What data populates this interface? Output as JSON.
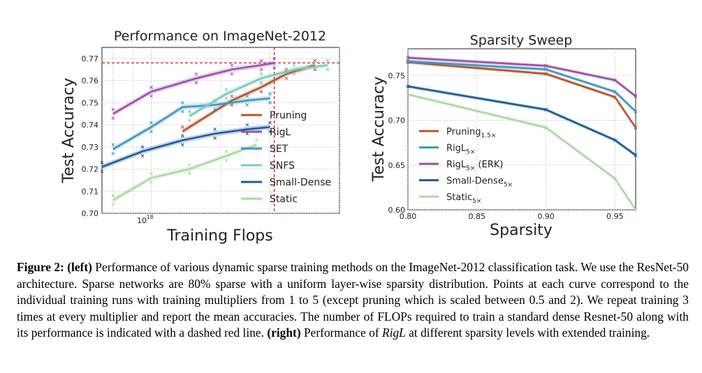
{
  "colors": {
    "pruning": "#b5542a",
    "rigl": "#9b4fae",
    "set": "#3f97c4",
    "snfs": "#79cbbf",
    "small_dense": "#1b5d9a",
    "static": "#a9dba0",
    "dense_line": "#d62728"
  },
  "chart_data": [
    {
      "type": "line",
      "title": "Performance on ImageNet-2012",
      "xlabel": "Training Flops",
      "ylabel": "Test Accuracy",
      "x_scale": "log",
      "xlim": [
        0.75,
        3.0
      ],
      "ylim": [
        0.7,
        0.775
      ],
      "x_tick_label": "10",
      "x_tick_exponent": "18",
      "y_ticks": [
        "0.70",
        "0.71",
        "0.72",
        "0.73",
        "0.74",
        "0.75",
        "0.76",
        "0.77"
      ],
      "dense_reference": {
        "accuracy": 0.768,
        "flops": 2.05
      },
      "legend_position": "center-right",
      "grid": true,
      "series": [
        {
          "key": "pruning",
          "name": "Pruning",
          "x": [
            1.2,
            1.6,
            1.9,
            2.2,
            2.6
          ],
          "y": [
            0.737,
            0.751,
            0.757,
            0.763,
            0.767
          ]
        },
        {
          "key": "rigl",
          "name": "RigL",
          "x": [
            0.8,
            1.0,
            1.3,
            1.6,
            1.9,
            2.05
          ],
          "y": [
            0.745,
            0.755,
            0.761,
            0.765,
            0.767,
            0.768
          ]
        },
        {
          "key": "set",
          "name": "SET",
          "x": [
            0.8,
            1.0,
            1.2,
            1.45,
            1.75,
            2.0
          ],
          "y": [
            0.729,
            0.739,
            0.748,
            0.749,
            0.751,
            0.752
          ]
        },
        {
          "key": "snfs",
          "name": "SNFS",
          "x": [
            1.25,
            1.55,
            1.9,
            2.3,
            2.8
          ],
          "y": [
            0.744,
            0.754,
            0.761,
            0.765,
            0.767
          ]
        },
        {
          "key": "small_dense",
          "name": "Small-Dense",
          "x": [
            0.75,
            0.95,
            1.2,
            1.45,
            1.75,
            2.0
          ],
          "y": [
            0.721,
            0.728,
            0.733,
            0.736,
            0.738,
            0.739
          ]
        },
        {
          "key": "static",
          "name": "Static",
          "x": [
            0.8,
            1.0,
            1.25,
            1.55,
            1.85
          ],
          "y": [
            0.706,
            0.716,
            0.72,
            0.726,
            0.731
          ]
        }
      ]
    },
    {
      "type": "line",
      "title": "Sparsity Sweep",
      "xlabel": "Sparsity",
      "ylabel": "Test Accuracy",
      "xlim": [
        0.8,
        0.965
      ],
      "ylim": [
        0.6,
        0.78
      ],
      "x_ticks": [
        "0.80",
        "0.85",
        "0.90",
        "0.95"
      ],
      "y_ticks": [
        "0.60",
        "0.65",
        "0.70",
        "0.75"
      ],
      "legend_position": "center",
      "grid": true,
      "series": [
        {
          "key": "pruning",
          "name": "Pruning",
          "sub": "1.5×",
          "x": [
            0.8,
            0.9,
            0.95,
            0.965
          ],
          "y": [
            0.765,
            0.752,
            0.726,
            0.692
          ]
        },
        {
          "key": "set",
          "name": "RigL",
          "sub": "5×",
          "x": [
            0.8,
            0.9,
            0.95,
            0.965
          ],
          "y": [
            0.766,
            0.757,
            0.732,
            0.71
          ]
        },
        {
          "key": "rigl",
          "name": "RigL",
          "sub": "5×",
          "suffix": " (ERK)",
          "x": [
            0.8,
            0.9,
            0.95,
            0.965
          ],
          "y": [
            0.77,
            0.761,
            0.745,
            0.727
          ]
        },
        {
          "key": "small_dense",
          "name": "Small-Dense",
          "sub": "5×",
          "x": [
            0.8,
            0.9,
            0.95,
            0.965
          ],
          "y": [
            0.738,
            0.712,
            0.678,
            0.661
          ]
        },
        {
          "key": "static",
          "name": "Static",
          "sub": "5×",
          "x": [
            0.8,
            0.9,
            0.95,
            0.965
          ],
          "y": [
            0.729,
            0.692,
            0.635,
            0.6
          ]
        }
      ]
    }
  ],
  "caption": {
    "label": "Figure 2:",
    "left_tag": "(left)",
    "part1": " Performance of various dynamic sparse training methods on the ImageNet-2012 classification task. We use the ResNet-50 architecture. Sparse networks are 80% sparse with a uniform layer-wise sparsity distribution. Points at each curve correspond to the individual training runs with training multipliers from 1 to 5 (except pruning which is scaled between 0.5 and 2). We repeat training 3 times at every multiplier and report the mean accuracies. The number of FLOPs required to train a standard dense Resnet-50 along with its performance is indicated with a dashed red line. ",
    "right_tag": "(right)",
    "part2": " Performance of ",
    "rigl": "RigL",
    "part3": " at different sparsity levels with extended training."
  }
}
